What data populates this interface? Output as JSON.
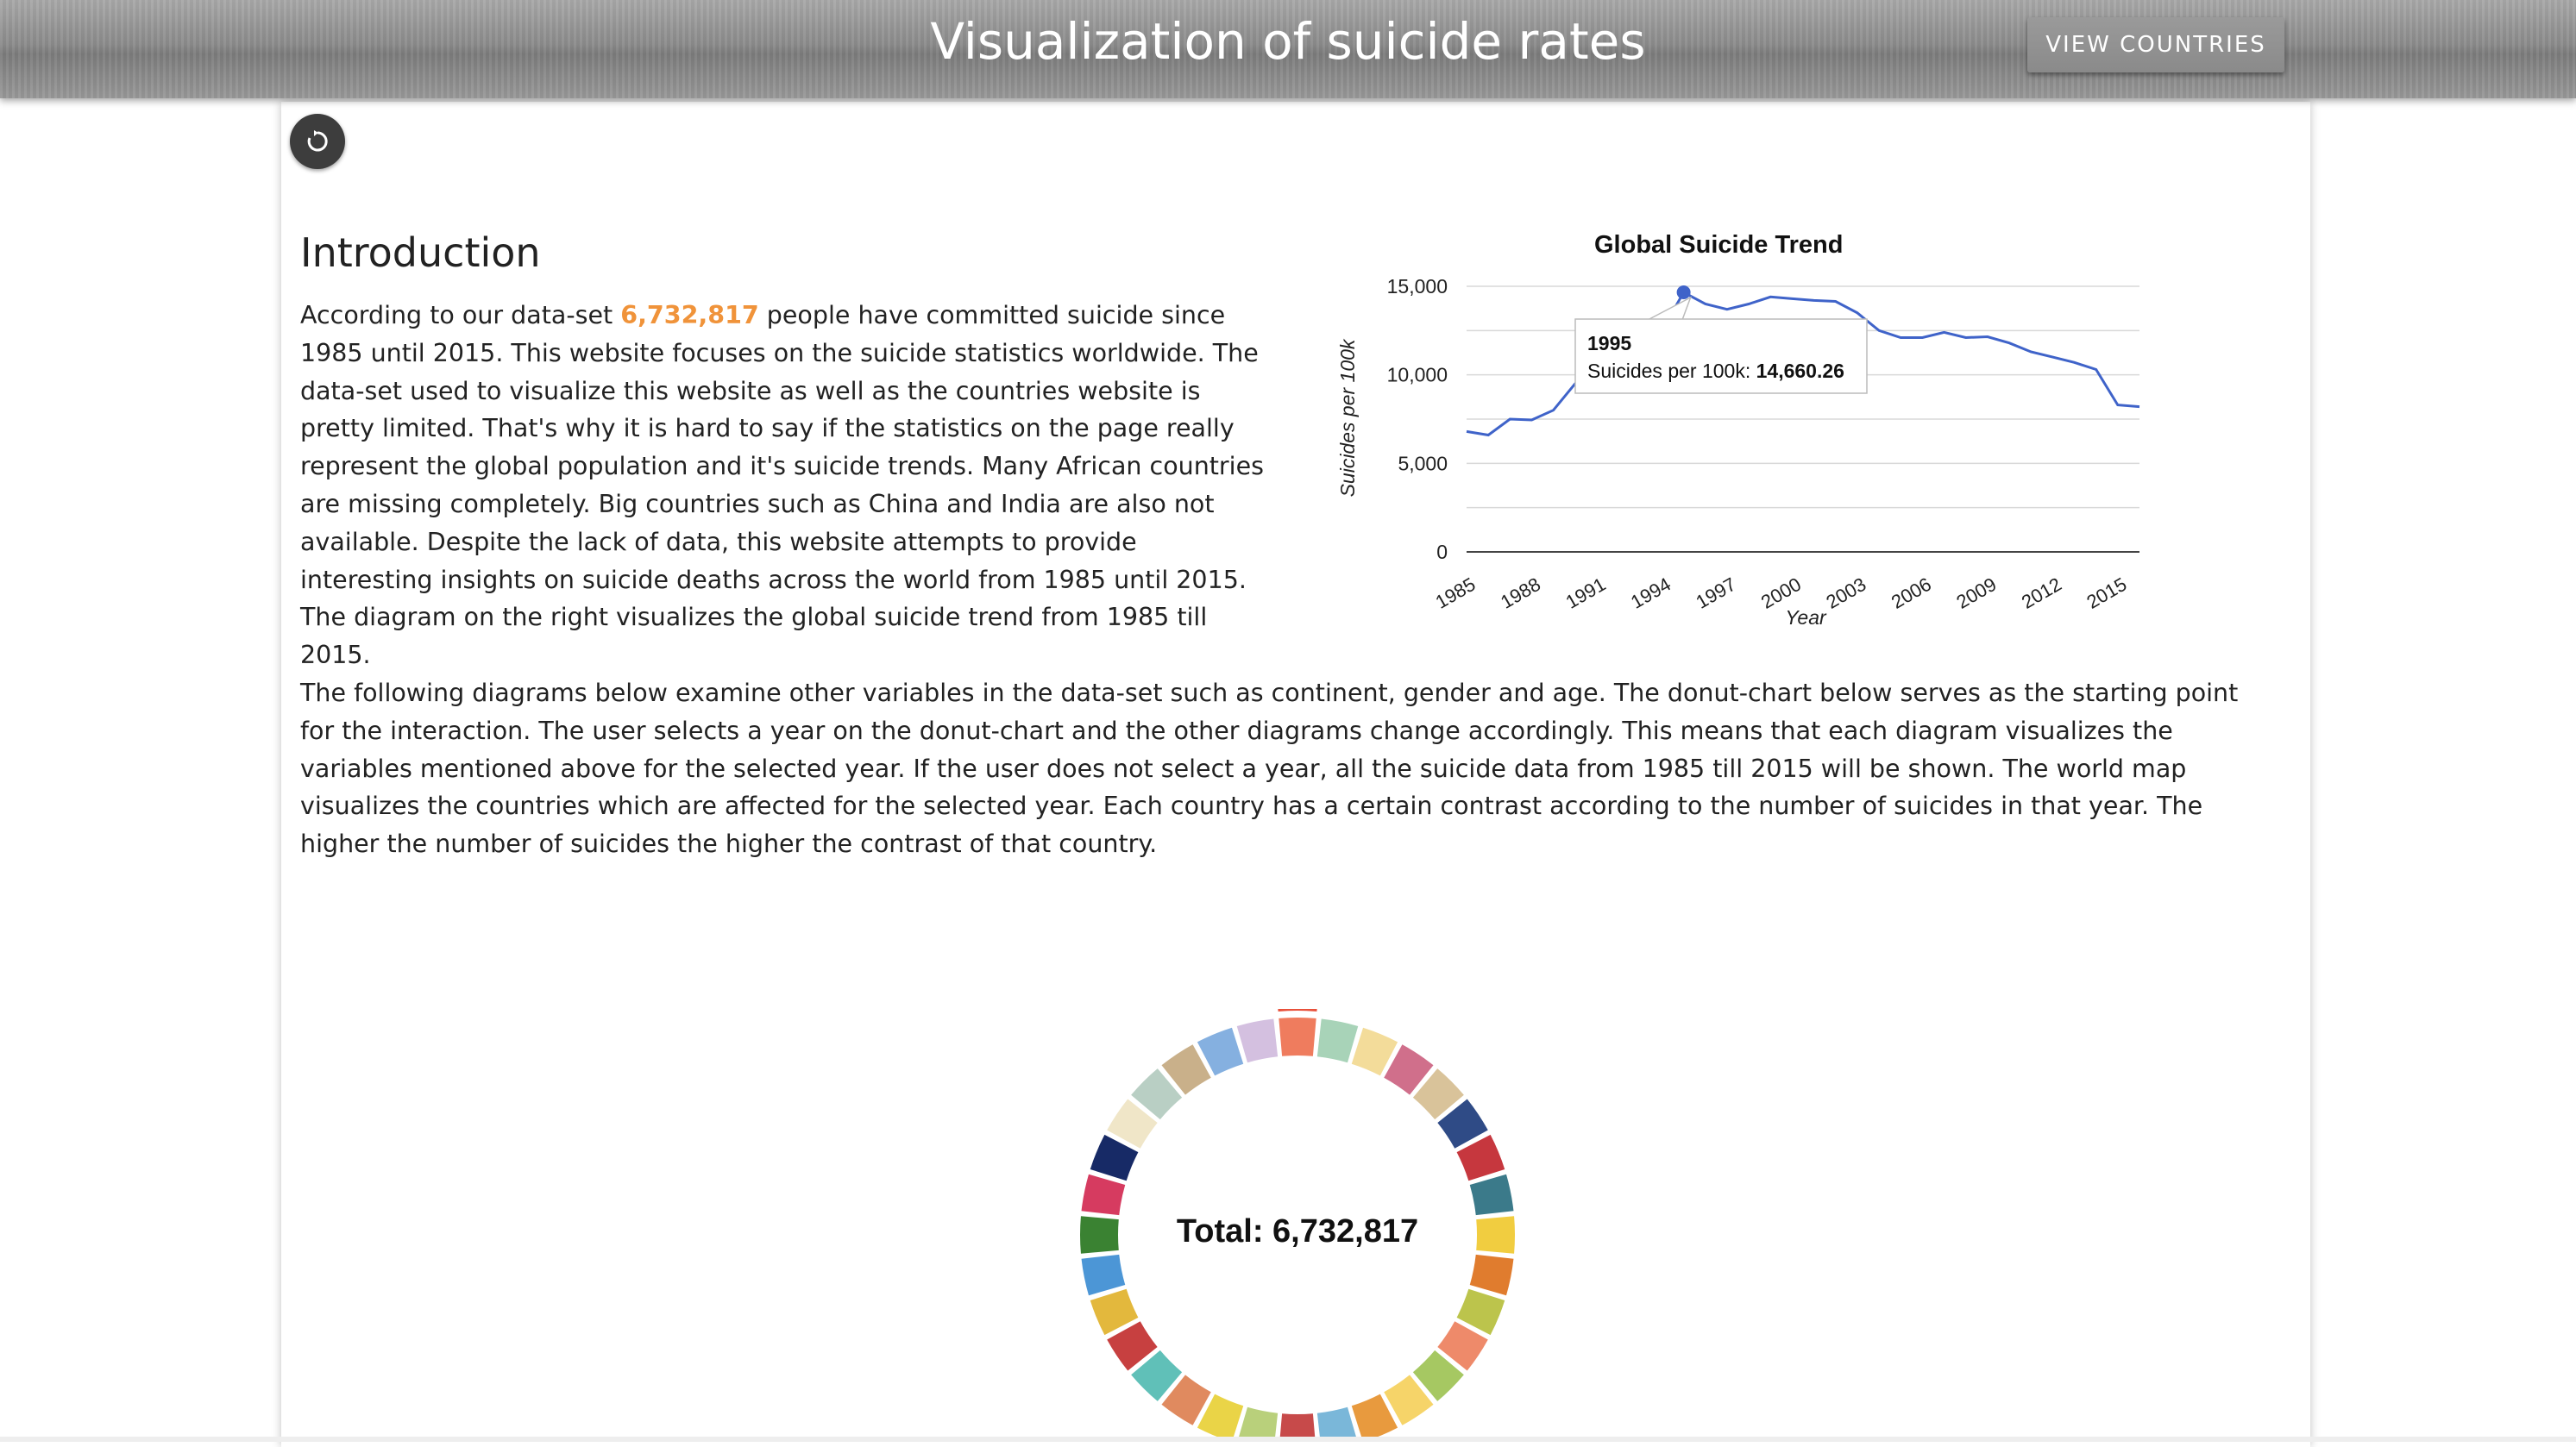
{
  "header": {
    "title": "Visualization of suicide rates",
    "view_countries_label": "VIEW COUNTRIES"
  },
  "toolbar": {
    "reset_icon": "reset-icon"
  },
  "intro": {
    "heading": "Introduction",
    "p1_before": "According to our data-set ",
    "p1_highlight": "6,732,817",
    "p1_after": " people have committed suicide since 1985 until 2015. This website focuses on the suicide statistics worldwide. The data-set used to visualize this website as well as the countries website is pretty limited. That's why it is hard to say if the statistics on the page really represent the global population and it's suicide trends. Many African countries are missing completely. Big countries such as China and India are also not available. Despite the lack of data, this website attempts to provide interesting insights on suicide deaths across the world from 1985 until 2015.",
    "p2": "The diagram on the right visualizes the global suicide trend from 1985 till 2015.",
    "highlight_color": "#f0933a"
  },
  "description": "The following diagrams below examine other variables in the data-set such as continent, gender and age. The donut-chart below serves as the starting point for the interaction. The user selects a year on the donut-chart and the other diagrams change accordingly. This means that each diagram visualizes the variables mentioned above for the selected year. If the user does not select a year, all the suicide data from 1985 till 2015 will be shown. The world map visualizes the countries which are affected for the selected year. Each country has a certain contrast according to the number of suicides in that year. The higher the number of suicides the higher the contrast of that country.",
  "chart_data": [
    {
      "type": "line",
      "title": "Global Suicide Trend",
      "xlabel": "Year",
      "ylabel": "Suicides per 100k",
      "ylim": [
        0,
        15000
      ],
      "yticks": [
        "0",
        "5,000",
        "10,000",
        "15,000"
      ],
      "xticks": [
        "1985",
        "1988",
        "1991",
        "1994",
        "1997",
        "2000",
        "2003",
        "2006",
        "2009",
        "2012",
        "2015"
      ],
      "line_color": "#3f63c9",
      "x": [
        1985,
        1986,
        1987,
        1988,
        1989,
        1990,
        1991,
        1992,
        1993,
        1994,
        1995,
        1996,
        1997,
        1998,
        1999,
        2000,
        2001,
        2002,
        2003,
        2004,
        2005,
        2006,
        2007,
        2008,
        2009,
        2010,
        2011,
        2012,
        2013,
        2014,
        2015,
        2016
      ],
      "values": [
        6800,
        6600,
        7500,
        7450,
        8000,
        9500,
        10500,
        11000,
        11500,
        12500,
        14660,
        14000,
        13700,
        14000,
        14400,
        14300,
        14200,
        14150,
        13500,
        12500,
        12100,
        12100,
        12400,
        12100,
        12150,
        11800,
        11300,
        11000,
        10700,
        10300,
        8300,
        8200
      ],
      "tooltip": {
        "year": "1995",
        "label": "Suicides per 100k: ",
        "value": "14,660.26"
      }
    },
    {
      "type": "pie",
      "center_label": "Total: 6,732,817",
      "segments": 32,
      "colors": [
        "#ef7c5e",
        "#a8d3b8",
        "#f3dc9a",
        "#d06f8b",
        "#d9c39a",
        "#2f4b86",
        "#c6373e",
        "#3b7a8a",
        "#f1cd40",
        "#e07c2e",
        "#bcc44c",
        "#ee8a6a",
        "#a6c862",
        "#f6d469",
        "#e89a3e",
        "#7ab7d9",
        "#c74a4a",
        "#b9d07b",
        "#ead447",
        "#e08a5f",
        "#60c0b8",
        "#c74040",
        "#e3b83d",
        "#4c96d6",
        "#3a8232",
        "#d63b60",
        "#172a66",
        "#f0e6c8",
        "#b9cfc4",
        "#c9b08a",
        "#85b0e0",
        "#d4c0e0"
      ]
    }
  ]
}
